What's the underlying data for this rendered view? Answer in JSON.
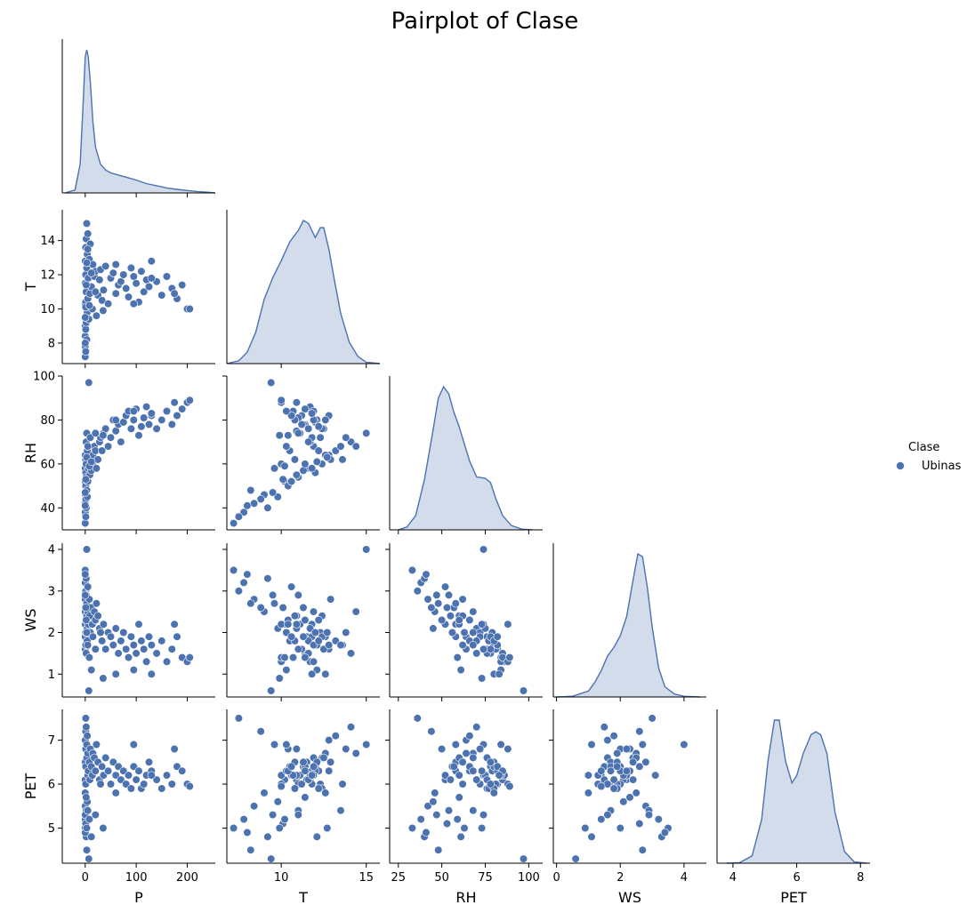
{
  "chart_data": {
    "type": "scatter",
    "title": "Pairplot of Clase",
    "variables": [
      "P",
      "T",
      "RH",
      "WS",
      "PET"
    ],
    "axes": {
      "P": {
        "lim": [
          -45,
          255
        ],
        "ticks": [
          0,
          100,
          200
        ]
      },
      "T": {
        "lim": [
          6.8,
          15.8
        ],
        "ticks": [
          8,
          10,
          12,
          14
        ],
        "xticks": [
          10,
          15
        ]
      },
      "RH": {
        "lim": [
          30,
          100
        ],
        "ticks": [
          40,
          60,
          80,
          100
        ],
        "xlim": [
          20,
          108
        ],
        "xticks": [
          25,
          50,
          75,
          100
        ]
      },
      "WS": {
        "lim": [
          0.45,
          4.15
        ],
        "ticks": [
          1,
          2,
          3,
          4
        ],
        "xlim": [
          -0.1,
          4.7
        ],
        "xticks": [
          0,
          2,
          4
        ]
      },
      "PET": {
        "lim": [
          4.2,
          7.7
        ],
        "ticks": [
          5,
          6,
          7
        ],
        "xlim": [
          3.5,
          8.3
        ],
        "xticks": [
          4,
          6,
          8
        ]
      }
    },
    "diagonal_type": "kde",
    "offdiagonal_type": "scatter",
    "corner": true,
    "legend": {
      "title": "Clase",
      "entries": [
        "Ubinas"
      ],
      "placement": "right"
    },
    "series": [
      {
        "name": "Ubinas",
        "color": "#4c72b0"
      }
    ],
    "kde": {
      "P": {
        "x": [
          -40,
          -20,
          -10,
          -5,
          0,
          3,
          6,
          10,
          15,
          20,
          30,
          40,
          50,
          60,
          80,
          100,
          120,
          140,
          160,
          180,
          200,
          220,
          240,
          255
        ],
        "density": [
          0.0,
          0.02,
          0.2,
          0.55,
          0.95,
          1.0,
          0.95,
          0.78,
          0.5,
          0.32,
          0.2,
          0.16,
          0.14,
          0.13,
          0.11,
          0.09,
          0.065,
          0.05,
          0.035,
          0.025,
          0.017,
          0.01,
          0.005,
          0.0
        ]
      },
      "T": {
        "x": [
          6.8,
          7.5,
          8.0,
          8.5,
          9.0,
          9.5,
          10.0,
          10.5,
          11.0,
          11.3,
          11.6,
          12.0,
          12.3,
          12.5,
          12.8,
          13.1,
          13.5,
          14.0,
          14.5,
          15.0,
          15.8
        ],
        "density": [
          0.0,
          0.02,
          0.08,
          0.22,
          0.45,
          0.6,
          0.72,
          0.85,
          0.93,
          1.0,
          0.98,
          0.88,
          0.95,
          0.95,
          0.8,
          0.6,
          0.35,
          0.15,
          0.05,
          0.01,
          0.0
        ]
      },
      "RH": {
        "x": [
          25,
          30,
          35,
          40,
          45,
          48,
          51,
          54,
          57,
          60,
          63,
          66,
          70,
          75,
          78,
          81,
          85,
          90,
          96,
          102
        ],
        "density": [
          0.0,
          0.02,
          0.1,
          0.35,
          0.7,
          0.92,
          1.0,
          0.95,
          0.82,
          0.72,
          0.6,
          0.48,
          0.37,
          0.36,
          0.33,
          0.22,
          0.1,
          0.03,
          0.005,
          0.0
        ]
      },
      "WS": {
        "x": [
          0.0,
          0.5,
          1.0,
          1.2,
          1.4,
          1.6,
          1.8,
          2.0,
          2.2,
          2.4,
          2.55,
          2.7,
          2.85,
          3.0,
          3.2,
          3.4,
          3.7,
          4.0,
          4.5
        ],
        "density": [
          0.0,
          0.005,
          0.04,
          0.1,
          0.18,
          0.28,
          0.34,
          0.42,
          0.55,
          0.8,
          0.98,
          0.96,
          0.75,
          0.48,
          0.2,
          0.07,
          0.02,
          0.005,
          0.0
        ]
      },
      "PET": {
        "x": [
          3.8,
          4.2,
          4.6,
          4.9,
          5.1,
          5.3,
          5.45,
          5.65,
          5.85,
          6.0,
          6.2,
          6.45,
          6.6,
          6.75,
          6.95,
          7.2,
          7.5,
          7.8,
          8.2
        ],
        "density": [
          0.0,
          0.003,
          0.05,
          0.3,
          0.7,
          0.98,
          0.98,
          0.7,
          0.55,
          0.6,
          0.75,
          0.88,
          0.9,
          0.88,
          0.75,
          0.35,
          0.08,
          0.01,
          0.0
        ]
      }
    },
    "points": {
      "P": [
        0,
        0,
        0,
        0,
        0,
        0,
        0,
        1,
        1,
        1,
        1,
        1,
        2,
        2,
        2,
        3,
        3,
        3,
        4,
        4,
        5,
        5,
        6,
        7,
        8,
        9,
        10,
        12,
        14,
        15,
        18,
        20,
        22,
        25,
        28,
        30,
        33,
        36,
        40,
        45,
        50,
        55,
        60,
        65,
        70,
        75,
        80,
        85,
        90,
        95,
        100,
        105,
        110,
        115,
        120,
        125,
        130,
        140,
        150,
        160,
        170,
        180,
        190,
        200,
        205,
        0,
        0,
        1,
        2,
        3,
        5,
        8,
        12,
        20,
        35,
        60,
        95,
        130,
        175
      ],
      "T": [
        7.2,
        7.8,
        8.4,
        9.0,
        10.2,
        11.5,
        12.8,
        7.5,
        8.8,
        10.4,
        12.0,
        13.6,
        9.2,
        11.0,
        14.1,
        8.2,
        12.4,
        15.0,
        9.8,
        13.2,
        10.6,
        14.4,
        11.8,
        9.4,
        12.9,
        10.9,
        13.8,
        11.3,
        10.0,
        12.6,
        11.9,
        12.2,
        9.6,
        10.8,
        11.7,
        12.3,
        10.5,
        11.1,
        12.5,
        10.3,
        11.8,
        12.1,
        10.9,
        11.4,
        11.6,
        12.0,
        11.2,
        10.7,
        12.4,
        11.9,
        11.5,
        10.4,
        12.2,
        11.0,
        11.7,
        11.3,
        12.8,
        11.6,
        10.8,
        11.9,
        11.2,
        10.6,
        11.4,
        10.0,
        10.0,
        8.0,
        9.5,
        10.1,
        11.4,
        12.7,
        13.5,
        10.2,
        12.1,
        11.0,
        9.9,
        12.6,
        10.3,
        11.8,
        10.9
      ],
      "RH": [
        33,
        38,
        42,
        46,
        52,
        58,
        64,
        36,
        44,
        50,
        56,
        62,
        40,
        54,
        70,
        48,
        60,
        74,
        45,
        66,
        52,
        68,
        58,
        97,
        62,
        55,
        72,
        57,
        60,
        64,
        68,
        66,
        58,
        62,
        70,
        72,
        66,
        74,
        76,
        68,
        72,
        80,
        75,
        78,
        70,
        79,
        82,
        84,
        76,
        80,
        85,
        73,
        77,
        81,
        86,
        78,
        82,
        76,
        80,
        84,
        78,
        82,
        85,
        88,
        89,
        41,
        47,
        53,
        60,
        63,
        68,
        59,
        61,
        74,
        73,
        80,
        84,
        83,
        88
      ],
      "WS": [
        3.5,
        3.2,
        2.8,
        2.5,
        2.2,
        1.9,
        1.6,
        3.0,
        2.6,
        2.3,
        2.0,
        1.7,
        3.3,
        2.9,
        1.5,
        2.7,
        2.4,
        4.0,
        2.1,
        1.8,
        3.1,
        2.5,
        2.2,
        0.6,
        2.8,
        2.4,
        2.0,
        2.6,
        2.2,
        1.9,
        2.5,
        2.3,
        2.7,
        2.4,
        2.1,
        2.0,
        1.8,
        2.2,
        1.6,
        2.0,
        1.9,
        1.7,
        2.1,
        1.5,
        1.8,
        2.0,
        1.6,
        1.4,
        1.9,
        1.7,
        1.5,
        2.2,
        1.8,
        1.6,
        1.3,
        1.9,
        1.7,
        1.5,
        1.8,
        1.3,
        1.6,
        1.9,
        1.4,
        1.3,
        1.4,
        3.4,
        2.9,
        2.6,
        2.3,
        2.0,
        1.7,
        1.4,
        1.1,
        1.6,
        0.9,
        1.0,
        1.1,
        1.0,
        2.2
      ],
      "PET": [
        5.0,
        5.2,
        5.5,
        5.8,
        6.1,
        6.5,
        7.0,
        7.5,
        7.2,
        6.8,
        6.4,
        6.0,
        4.8,
        5.4,
        7.3,
        4.5,
        6.6,
        6.9,
        5.6,
        7.1,
        6.2,
        6.7,
        6.3,
        4.3,
        6.5,
        6.1,
        6.8,
        6.4,
        6.2,
        6.7,
        6.6,
        6.3,
        6.9,
        6.5,
        6.1,
        6.0,
        6.4,
        6.2,
        6.6,
        6.3,
        6.0,
        6.5,
        6.2,
        6.4,
        6.1,
        6.3,
        6.0,
        6.2,
        5.9,
        6.4,
        6.1,
        6.3,
        5.9,
        6.0,
        6.2,
        6.5,
        6.3,
        6.1,
        5.9,
        6.2,
        6.0,
        6.4,
        6.3,
        6.0,
        5.95,
        4.9,
        5.3,
        5.1,
        5.7,
        5.0,
        5.4,
        5.2,
        4.8,
        5.3,
        5.0,
        5.8,
        6.9,
        6.2,
        6.8
      ]
    }
  }
}
